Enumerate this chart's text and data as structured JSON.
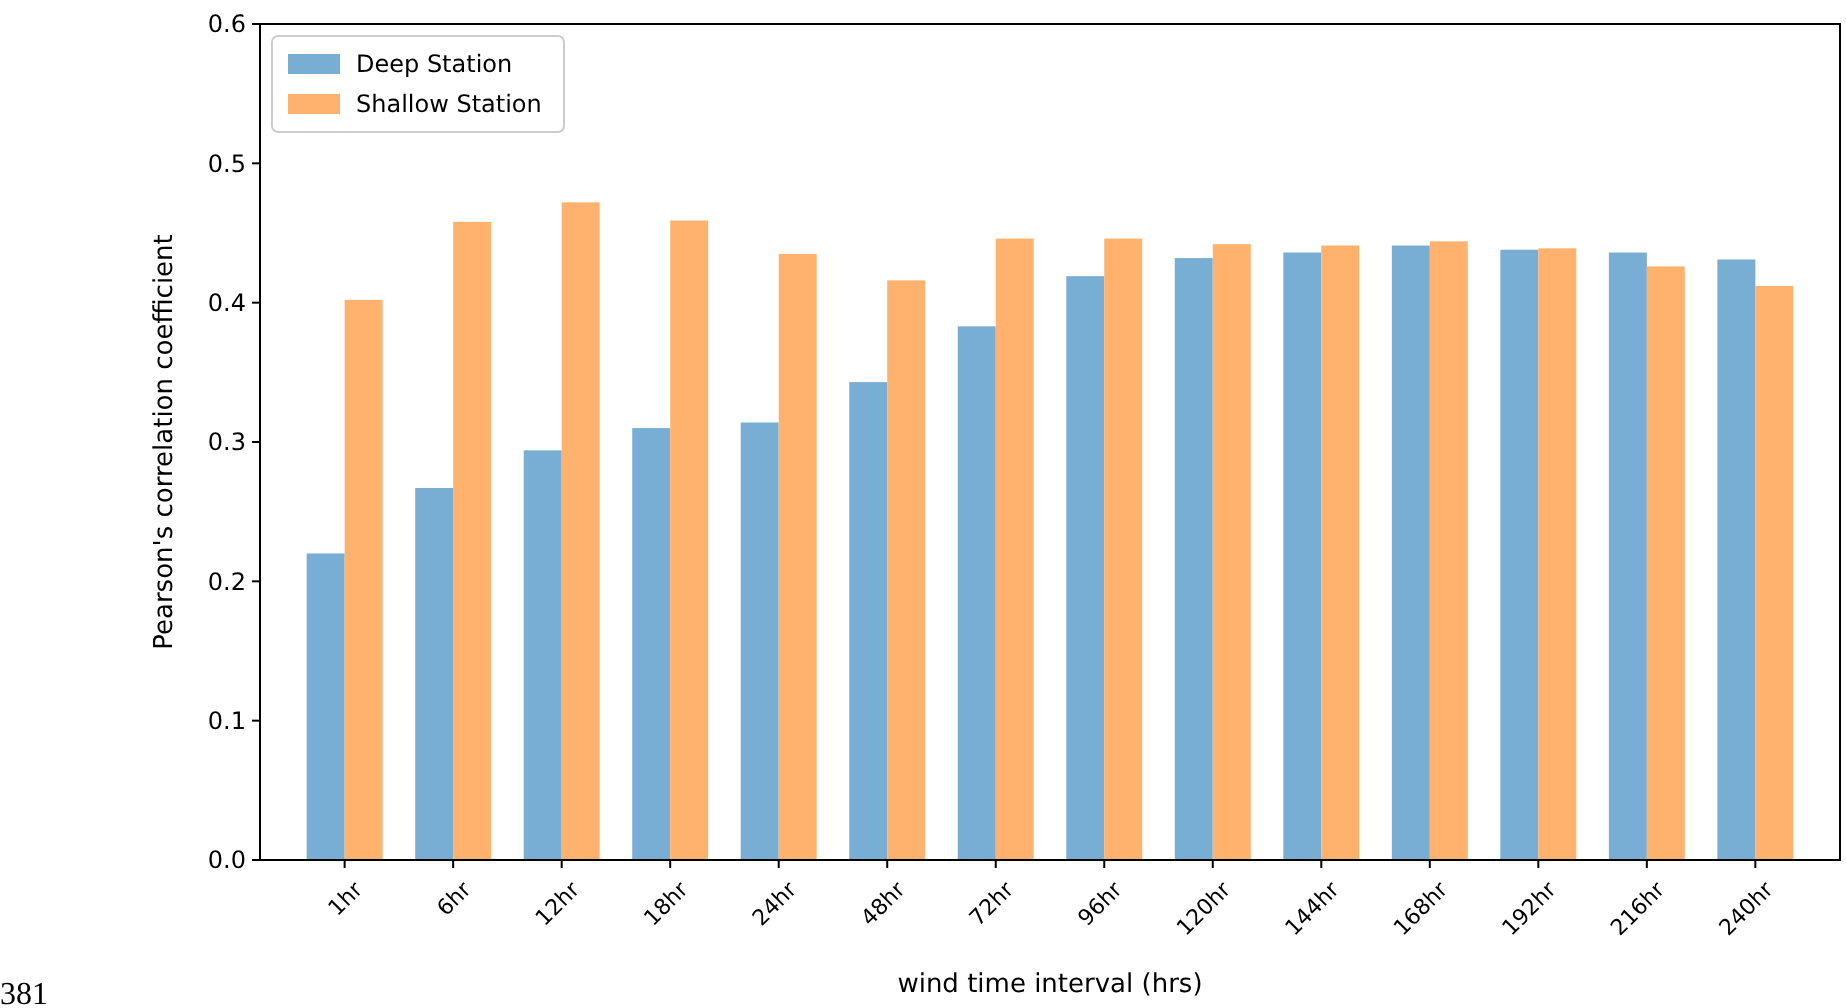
{
  "chart_data": {
    "type": "bar",
    "xlabel": "wind time interval (hrs)",
    "ylabel": "Pearson's correlation coefficient",
    "categories": [
      "1hr",
      "6hr",
      "12hr",
      "18hr",
      "24hr",
      "48hr",
      "72hr",
      "96hr",
      "120hr",
      "144hr",
      "168hr",
      "192hr",
      "216hr",
      "240hr"
    ],
    "series": [
      {
        "name": "Deep Station",
        "color": "#78aed3",
        "values": [
          0.22,
          0.267,
          0.294,
          0.31,
          0.314,
          0.343,
          0.383,
          0.419,
          0.432,
          0.436,
          0.441,
          0.438,
          0.436,
          0.431
        ]
      },
      {
        "name": "Shallow Station",
        "color": "#ffb26e",
        "values": [
          0.402,
          0.458,
          0.472,
          0.459,
          0.435,
          0.416,
          0.446,
          0.446,
          0.442,
          0.441,
          0.444,
          0.439,
          0.426,
          0.412
        ]
      }
    ],
    "ylim": [
      0,
      0.6
    ],
    "yticks": [
      {
        "value": 0,
        "label": "0.0"
      },
      {
        "value": 0.1,
        "label": "0.1"
      },
      {
        "value": 0.2,
        "label": "0.2"
      },
      {
        "value": 0.3,
        "label": "0.3"
      },
      {
        "value": 0.4,
        "label": "0.4"
      },
      {
        "value": 0.5,
        "label": "0.5"
      },
      {
        "value": 0.6,
        "label": "0.6"
      }
    ],
    "legend": "top left",
    "grid": false,
    "annotations": [
      "381"
    ]
  }
}
